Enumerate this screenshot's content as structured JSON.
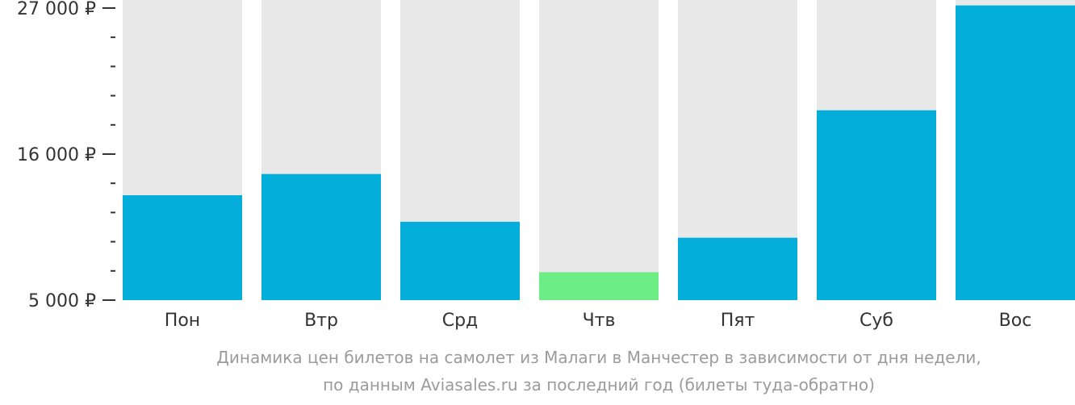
{
  "chart_data": {
    "type": "bar",
    "title": "",
    "caption": [
      "Динамика цен билетов на самолет из Малаги в Манчестер в зависимости от дня недели,",
      "по данным Aviasales.ru за последний год (билеты туда-обратно)"
    ],
    "categories": [
      "Пон",
      "Втр",
      "Срд",
      "Чтв",
      "Пят",
      "Суб",
      "Вос"
    ],
    "values": [
      12900,
      14500,
      10900,
      7100,
      9700,
      19300,
      27200
    ],
    "ylim": [
      5000,
      27000
    ],
    "yticks": [
      {
        "value": 27000,
        "label": "27 000 ₽"
      },
      {
        "value": 16000,
        "label": "16 000 ₽"
      },
      {
        "value": 5000,
        "label": "5 000 ₽"
      }
    ],
    "minor_tick_step": 2200,
    "background_bar_color": "#e8e8e8",
    "bar_color": "#03aedb",
    "min_bar_color": "#6ced86",
    "axis_color": "#333333",
    "grid": false,
    "legend": false
  }
}
